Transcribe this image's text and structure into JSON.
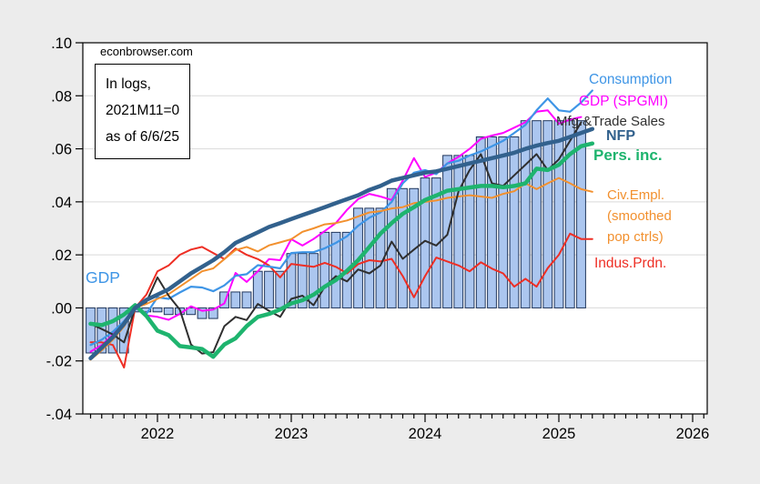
{
  "page": {
    "background": "#ececec",
    "plot_background": "#ffffff",
    "grid_color": "#d9d9d9"
  },
  "watermark": "econbrowser.com",
  "info_box": {
    "line1": "In logs,",
    "line2": "2021M11=0",
    "line3": "as of 6/6/25"
  },
  "chart_data": {
    "type": "mixed-bar-line",
    "x_unit": "month",
    "x_start": "2021-07",
    "x_axis": {
      "tick_labels": [
        "2022",
        "2023",
        "2024",
        "2025",
        "2026"
      ],
      "minor_ticks": "monthly"
    },
    "y_axis": {
      "tick_labels": [
        ".10",
        ".08",
        ".06",
        ".04",
        ".02",
        ".00",
        "-.02",
        "-.04"
      ],
      "tick_values": [
        0.1,
        0.08,
        0.06,
        0.04,
        0.02,
        0.0,
        -0.02,
        -0.04
      ],
      "ylim": [
        -0.04,
        0.1
      ],
      "grid": true
    },
    "bars": {
      "id": "gdp_bars",
      "label": "GDP",
      "label_color": "#3e95e6",
      "fill": "#abc6ef",
      "border": "#20365c",
      "values": [
        -0.017,
        -0.017,
        -0.017,
        -0.017,
        -0.0015,
        -0.0015,
        -0.0015,
        -0.0025,
        -0.0025,
        -0.0025,
        -0.004,
        -0.004,
        0.006,
        0.006,
        0.006,
        0.0138,
        0.0138,
        0.0138,
        0.0205,
        0.0205,
        0.0205,
        0.0285,
        0.0285,
        0.0285,
        0.0376,
        0.0376,
        0.0376,
        0.045,
        0.045,
        0.045,
        0.049,
        0.049,
        0.0575,
        0.0575,
        0.0575,
        0.0645,
        0.0645,
        0.0645,
        0.0645,
        0.0706,
        0.0706,
        0.0706,
        0.0706,
        0.0706,
        0.0706
      ]
    },
    "series": [
      {
        "id": "gdp_spgmi",
        "label": "GDP (SPGMI)",
        "color": "#ff00ff",
        "width": 2,
        "values": [
          -0.0165,
          -0.014,
          -0.01,
          -0.005,
          0,
          -0.0028,
          -0.0034,
          -0.0045,
          -0.0023,
          0.0006,
          -0.0011,
          -0.0006,
          0.0017,
          0.0132,
          0.0098,
          0.0138,
          0.0184,
          0.018,
          0.0259,
          0.0235,
          0.026,
          0.029,
          0.032,
          0.037,
          0.041,
          0.043,
          0.042,
          0.0407,
          0.048,
          0.0565,
          0.0494,
          0.051,
          0.0545,
          0.057,
          0.06,
          0.0638,
          0.065,
          0.066,
          0.068,
          0.07,
          0.074,
          0.0745,
          0.0695,
          0.071,
          0.072,
          null
        ]
      },
      {
        "id": "indus_prdn",
        "label": "Indus.Prdn.",
        "color": "#ee2e24",
        "width": 2,
        "values": [
          -0.013,
          -0.013,
          -0.014,
          -0.0225,
          0,
          0.005,
          0.0138,
          0.016,
          0.02,
          0.022,
          0.023,
          0.0207,
          0.0184,
          0.0224,
          0.02,
          0.0184,
          0.016,
          0.0115,
          0.0166,
          0.016,
          0.0155,
          0.017,
          0.0155,
          0.013,
          0.0165,
          0.018,
          0.0175,
          0.0185,
          0.012,
          0.004,
          0.012,
          0.019,
          0.0175,
          0.016,
          0.0138,
          0.0172,
          0.0148,
          0.013,
          0.008,
          0.011,
          0.008,
          0.015,
          0.02,
          0.028,
          0.026,
          0.026
        ]
      },
      {
        "id": "consumption",
        "label": "Consumption",
        "color": "#3e95e6",
        "width": 2.2,
        "values": [
          -0.014,
          -0.012,
          -0.009,
          -0.005,
          0,
          -0.0023,
          0.004,
          0.0034,
          0.0058,
          0.008,
          0.0077,
          0.0063,
          0.0085,
          0.0121,
          0.0127,
          0.0161,
          0.0156,
          0.0149,
          0.0207,
          0.021,
          0.021,
          0.0225,
          0.0245,
          0.027,
          0.031,
          0.034,
          0.036,
          0.04,
          0.047,
          0.051,
          0.052,
          0.0505,
          0.0545,
          0.0555,
          0.0575,
          0.059,
          0.061,
          0.063,
          0.066,
          0.069,
          0.0745,
          0.079,
          0.0745,
          0.074,
          0.0775,
          0.082
        ]
      },
      {
        "id": "civ_empl",
        "label": "Civ.Empl.",
        "label2": "(smoothed",
        "label3": "pop ctrls)",
        "color": "#f2902e",
        "width": 2,
        "values": [
          -0.0195,
          -0.016,
          -0.012,
          -0.007,
          0,
          0.0015,
          0.0034,
          0.0052,
          0.008,
          0.0109,
          0.0138,
          0.0149,
          0.0184,
          0.0218,
          0.023,
          0.0213,
          0.0236,
          0.0247,
          0.0259,
          0.0287,
          0.03,
          0.0315,
          0.032,
          0.033,
          0.0345,
          0.036,
          0.0365,
          0.0375,
          0.038,
          0.0395,
          0.04,
          0.0405,
          0.0415,
          0.042,
          0.0425,
          0.042,
          0.0415,
          0.043,
          0.044,
          0.047,
          0.0448,
          0.047,
          0.049,
          0.047,
          0.0448,
          0.0438
        ]
      },
      {
        "id": "mfg_trade",
        "label": "Mfg.&Trade Sales",
        "color": "#2f2f2f",
        "width": 2,
        "values": [
          -0.006,
          -0.008,
          -0.01,
          -0.013,
          0,
          0.0022,
          0.0115,
          0.0046,
          -0.0006,
          -0.0138,
          -0.0172,
          -0.0167,
          -0.0069,
          -0.0034,
          -0.0046,
          0.0015,
          -0.0011,
          -0.0034,
          0.0034,
          0.0046,
          0.001,
          0.008,
          0.012,
          0.01,
          0.0145,
          0.013,
          0.016,
          0.025,
          0.0185,
          0.022,
          0.0253,
          0.0235,
          0.0276,
          0.044,
          0.052,
          0.058,
          0.047,
          0.046,
          0.05,
          0.054,
          0.058,
          0.052,
          0.056,
          0.063,
          0.07,
          null
        ]
      },
      {
        "id": "pers_inc",
        "label": "Pers. inc.",
        "color": "#1eb46e",
        "width": 4.5,
        "values": [
          -0.006,
          -0.0065,
          -0.005,
          -0.0025,
          0.001,
          -0.003,
          -0.0086,
          -0.0103,
          -0.0144,
          -0.0149,
          -0.0155,
          -0.0184,
          -0.0138,
          -0.0115,
          -0.0069,
          -0.0034,
          -0.0023,
          -0.0006,
          0.0017,
          0.0029,
          0.005,
          0.008,
          0.0105,
          0.014,
          0.018,
          0.023,
          0.028,
          0.032,
          0.0355,
          0.038,
          0.0407,
          0.0424,
          0.0442,
          0.0448,
          0.0454,
          0.046,
          0.046,
          0.0455,
          0.046,
          0.047,
          0.0525,
          0.052,
          0.054,
          0.058,
          0.061,
          0.062
        ]
      },
      {
        "id": "nfp",
        "label": "NFP",
        "color": "#32618d",
        "width": 4.5,
        "values": [
          -0.019,
          -0.015,
          -0.011,
          -0.006,
          0,
          0.003,
          0.005,
          0.007,
          0.01,
          0.013,
          0.0155,
          0.018,
          0.021,
          0.0245,
          0.0265,
          0.0285,
          0.0305,
          0.032,
          0.0335,
          0.035,
          0.0365,
          0.038,
          0.0395,
          0.041,
          0.0425,
          0.0445,
          0.046,
          0.048,
          0.049,
          0.05,
          0.051,
          0.0515,
          0.0525,
          0.0535,
          0.0545,
          0.0555,
          0.0565,
          0.0575,
          0.0585,
          0.06,
          0.0612,
          0.0622,
          0.063,
          0.0645,
          0.066,
          0.0675
        ]
      }
    ]
  }
}
